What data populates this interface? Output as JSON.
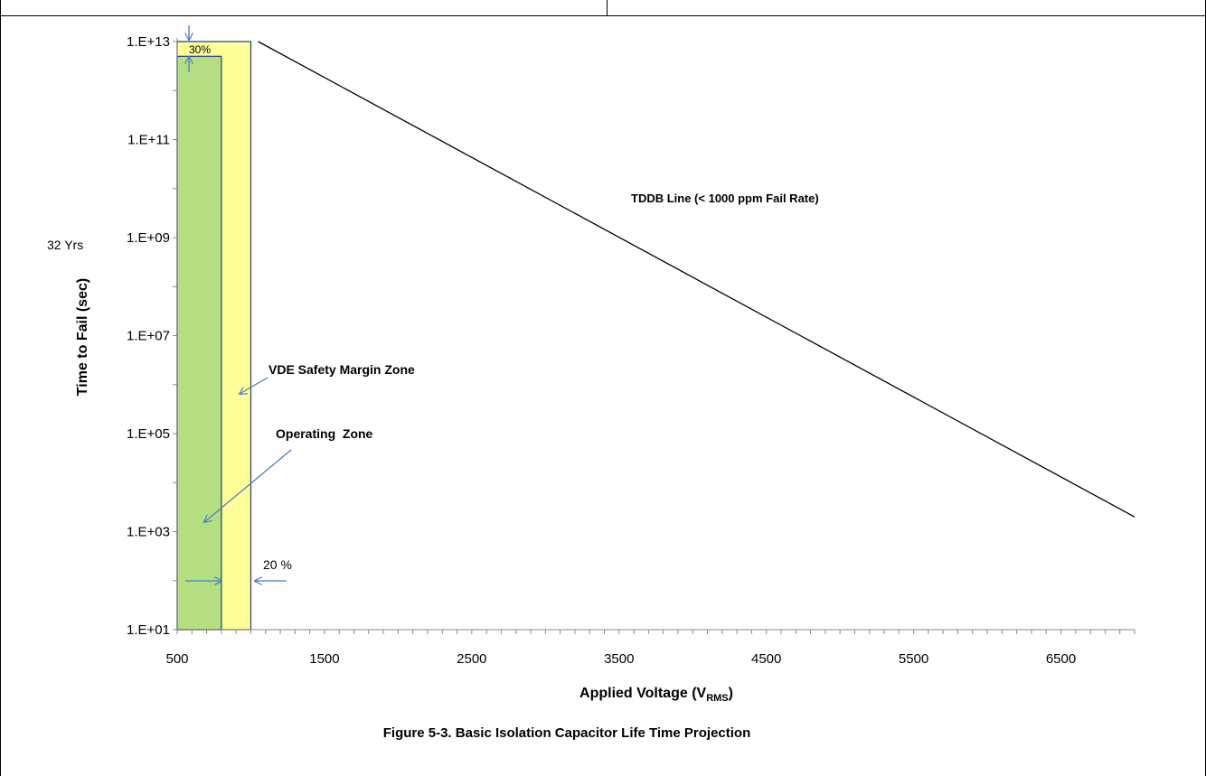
{
  "chart_data": {
    "type": "line",
    "title": "",
    "caption": "Figure 5-3. Basic Isolation Capacitor Life Time Projection",
    "xlabel_main": "Applied Voltage (V",
    "xlabel_sub": "RMS",
    "xlabel_close": ")",
    "ylabel": "Time to Fail (sec)",
    "x_scale": "linear",
    "y_scale": "log",
    "xlim": [
      500,
      7000
    ],
    "ylim": [
      10,
      10000000000000
    ],
    "x_ticks": [
      500,
      1500,
      2500,
      3500,
      4500,
      5500,
      6500
    ],
    "x_tick_labels": [
      "500",
      "1500",
      "2500",
      "3500",
      "4500",
      "5500",
      "6500"
    ],
    "y_ticks": [
      10,
      1000,
      100000,
      10000000,
      1000000000,
      100000000000,
      10000000000000
    ],
    "y_tick_labels": [
      "1.E+01",
      "1.E+03",
      "1.E+05",
      "1.E+07",
      "1.E+09",
      "1.E+11",
      "1.E+13"
    ],
    "grid": false,
    "series": [
      {
        "name": "TDDB Line (< 1000 ppm Fail Rate)",
        "x": [
          1050,
          7000
        ],
        "y": [
          10000000000000,
          2000
        ],
        "color": "#000000"
      }
    ],
    "zones": [
      {
        "label": "VDE Safety Margin Zone",
        "x_start": 500,
        "x_end": 1000,
        "y_top": 10000000000000,
        "color": "#ffff99"
      },
      {
        "label": "Operating  Zone",
        "x_start": 500,
        "x_end": 800,
        "y_top": 5000000000000,
        "color": "#b3de81"
      }
    ],
    "annotations": {
      "margin_30": "30%",
      "margin_20": "20 %",
      "yrs_32": "32 Yrs"
    },
    "colors": {
      "arrow": "#4a7ebb",
      "zone_border": "#2e4a7a"
    }
  }
}
